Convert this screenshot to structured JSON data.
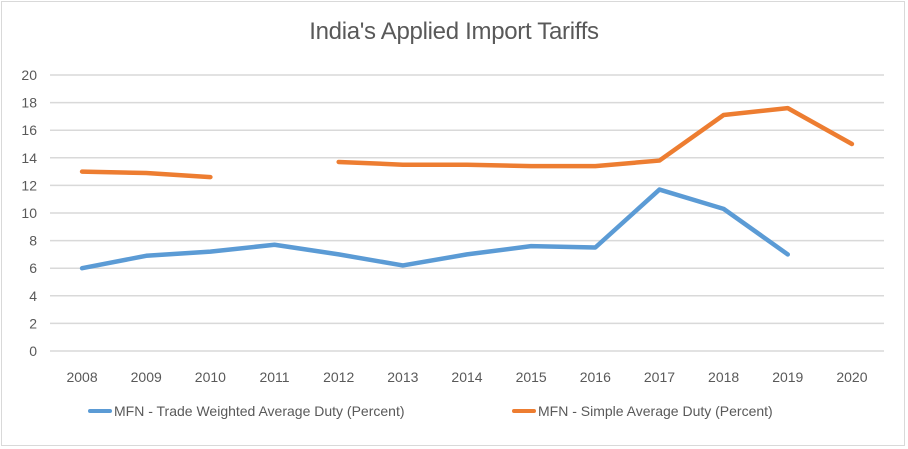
{
  "chart_data": {
    "type": "line",
    "title": "India's Applied Import Tariffs",
    "xlabel": "",
    "ylabel": "",
    "categories": [
      "2008",
      "2009",
      "2010",
      "2011",
      "2012",
      "2013",
      "2014",
      "2015",
      "2016",
      "2017",
      "2018",
      "2019",
      "2020"
    ],
    "ylim": [
      0,
      20
    ],
    "yticks": [
      0,
      2,
      4,
      6,
      8,
      10,
      12,
      14,
      16,
      18,
      20
    ],
    "grid": true,
    "legend_position": "bottom",
    "series": [
      {
        "name": "MFN - Trade Weighted Average Duty (Percent)",
        "color": "#5b9bd5",
        "values": [
          6.0,
          6.9,
          7.2,
          7.7,
          7.0,
          6.2,
          7.0,
          7.6,
          7.5,
          11.7,
          10.3,
          7.0,
          null
        ]
      },
      {
        "name": "MFN - Simple Average Duty (Percent)",
        "color": "#ed7d31",
        "values": [
          13.0,
          12.9,
          12.6,
          null,
          13.7,
          13.5,
          13.5,
          13.4,
          13.4,
          13.8,
          17.1,
          17.6,
          15.0
        ]
      }
    ]
  }
}
